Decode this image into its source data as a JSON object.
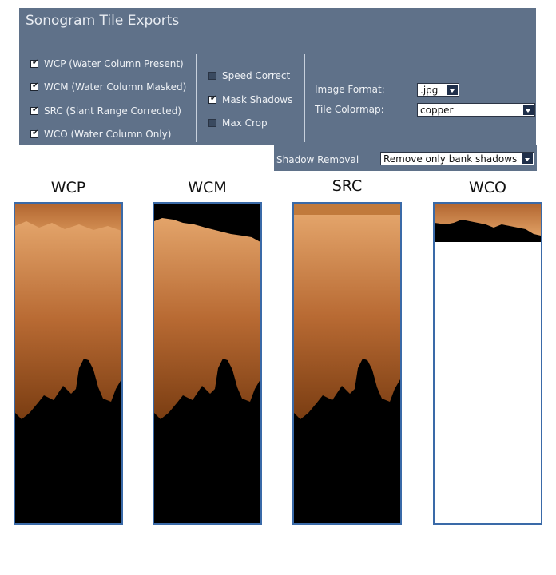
{
  "panel": {
    "title": "Sonogram Tile Exports",
    "exports": [
      {
        "label": "WCP (Water Column Present)",
        "checked": true
      },
      {
        "label": "WCM (Water Column Masked)",
        "checked": true
      },
      {
        "label": "SRC (Slant Range Corrected)",
        "checked": true
      },
      {
        "label": "WCO (Water Column Only)",
        "checked": true
      }
    ],
    "options": [
      {
        "label": "Speed Correct",
        "checked": false
      },
      {
        "label": "Mask Shadows",
        "checked": true
      },
      {
        "label": "Max Crop",
        "checked": false
      }
    ],
    "image_format": {
      "label": "Image Format:",
      "value": ".jpg"
    },
    "tile_colormap": {
      "label": "Tile Colormap:",
      "value": "copper"
    },
    "shadow_removal": {
      "label": "Shadow Removal",
      "value": "Remove only bank shadows"
    },
    "check_mark": "✔"
  },
  "tiles": [
    {
      "label": "WCP"
    },
    {
      "label": "WCM"
    },
    {
      "label": "SRC"
    },
    {
      "label": "WCO"
    }
  ],
  "colors": {
    "panel_bg": "#5f7189",
    "tile_border": "#3a6aa8",
    "copper_dark": "#7a3d12",
    "copper_light": "#e0a065"
  }
}
